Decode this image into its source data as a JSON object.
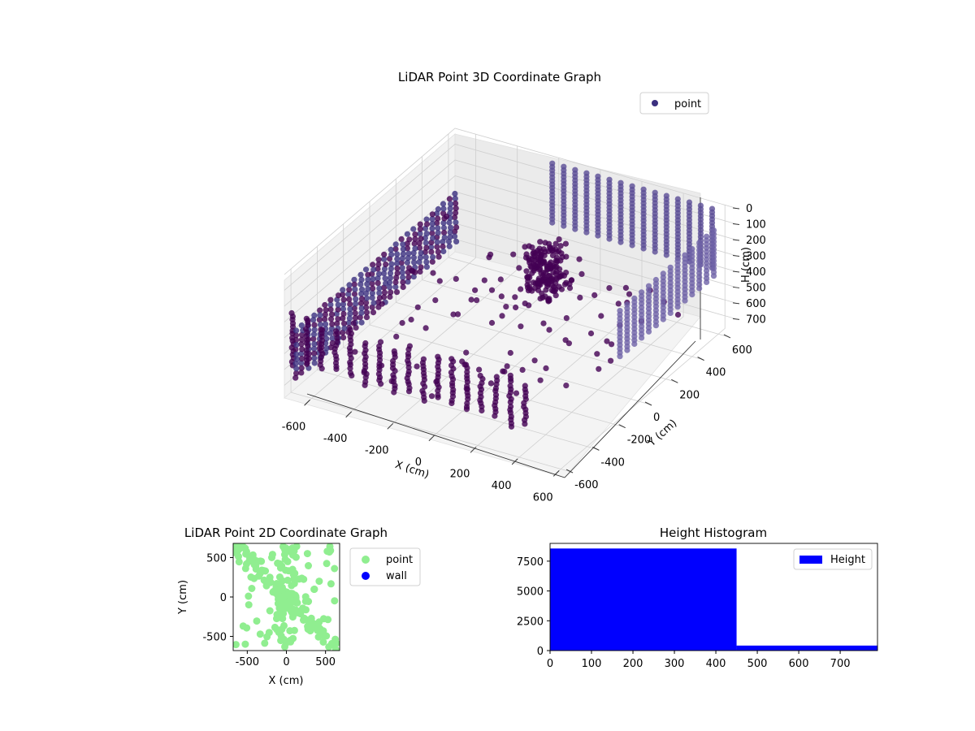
{
  "chart_data": [
    {
      "type": "scatter3d",
      "title": "LiDAR Point 3D Coordinate Graph",
      "xlabel": "X (cm)",
      "ylabel": "Y (cm)",
      "zlabel": "H (cm)",
      "xlim": [
        -700,
        650
      ],
      "ylim": [
        -650,
        650
      ],
      "zlim": [
        0,
        780
      ],
      "zaxis_inverted": true,
      "xticks": [
        -600,
        -400,
        -200,
        0,
        200,
        400,
        600
      ],
      "yticks": [
        -600,
        -400,
        -200,
        0,
        200,
        400,
        600
      ],
      "zticks": [
        0,
        100,
        200,
        300,
        400,
        500,
        600,
        700
      ],
      "legend": {
        "position": "top-right",
        "entries": [
          "point"
        ]
      },
      "grid": true,
      "series": [
        {
          "name": "point",
          "color": "#3b2f7f",
          "point_colors": [
            "#440154",
            "#3b2f7f",
            "#5b4e96",
            "#6f63a8"
          ],
          "description_groups": [
            {
              "group": "wall columns along front edge",
              "x_range": [
                -700,
                450
              ],
              "y": -600,
              "h_range": [
                280,
                620
              ]
            },
            {
              "group": "wall columns along back edge",
              "x_range": [
                -200,
                600
              ],
              "y": 600,
              "h_range": [
                0,
                400
              ]
            },
            {
              "group": "wall columns along right edge",
              "x": 600,
              "y_range": [
                -150,
                600
              ],
              "h_range": [
                100,
                400
              ]
            },
            {
              "group": "dense cluster",
              "x": 50,
              "y": 200,
              "h_range": [
                150,
                450
              ]
            },
            {
              "group": "scattered interior points",
              "x_range": [
                -600,
                500
              ],
              "y_range": [
                -500,
                500
              ],
              "h_range": [
                300,
                700
              ]
            }
          ]
        }
      ]
    },
    {
      "type": "scatter",
      "title": "LiDAR Point 2D Coordinate Graph",
      "xlabel": "X (cm)",
      "ylabel": "Y (cm)",
      "xlim": [
        -680,
        680
      ],
      "ylim": [
        -680,
        680
      ],
      "xticks": [
        -500,
        0,
        500
      ],
      "yticks": [
        -500,
        0,
        500
      ],
      "legend": {
        "position": "outside-right",
        "entries": [
          "point",
          "wall"
        ]
      },
      "series": [
        {
          "name": "point",
          "color": "#90ee90",
          "count_hint": 240
        },
        {
          "name": "wall",
          "color": "#0000ff",
          "points": []
        }
      ]
    },
    {
      "type": "bar",
      "title": "Height Histogram",
      "xlabel": "",
      "ylabel": "",
      "xlim": [
        0,
        790
      ],
      "ylim": [
        0,
        8990
      ],
      "xticks": [
        0,
        100,
        200,
        300,
        400,
        500,
        600,
        700
      ],
      "yticks": [
        0,
        2500,
        5000,
        7500
      ],
      "legend": {
        "position": "top-right",
        "entries": [
          "Height"
        ]
      },
      "series": [
        {
          "name": "Height",
          "color": "#0000ff",
          "bins": [
            {
              "from": 0,
              "to": 450,
              "count": 8560
            },
            {
              "from": 450,
              "to": 790,
              "count": 420
            }
          ]
        }
      ]
    }
  ]
}
